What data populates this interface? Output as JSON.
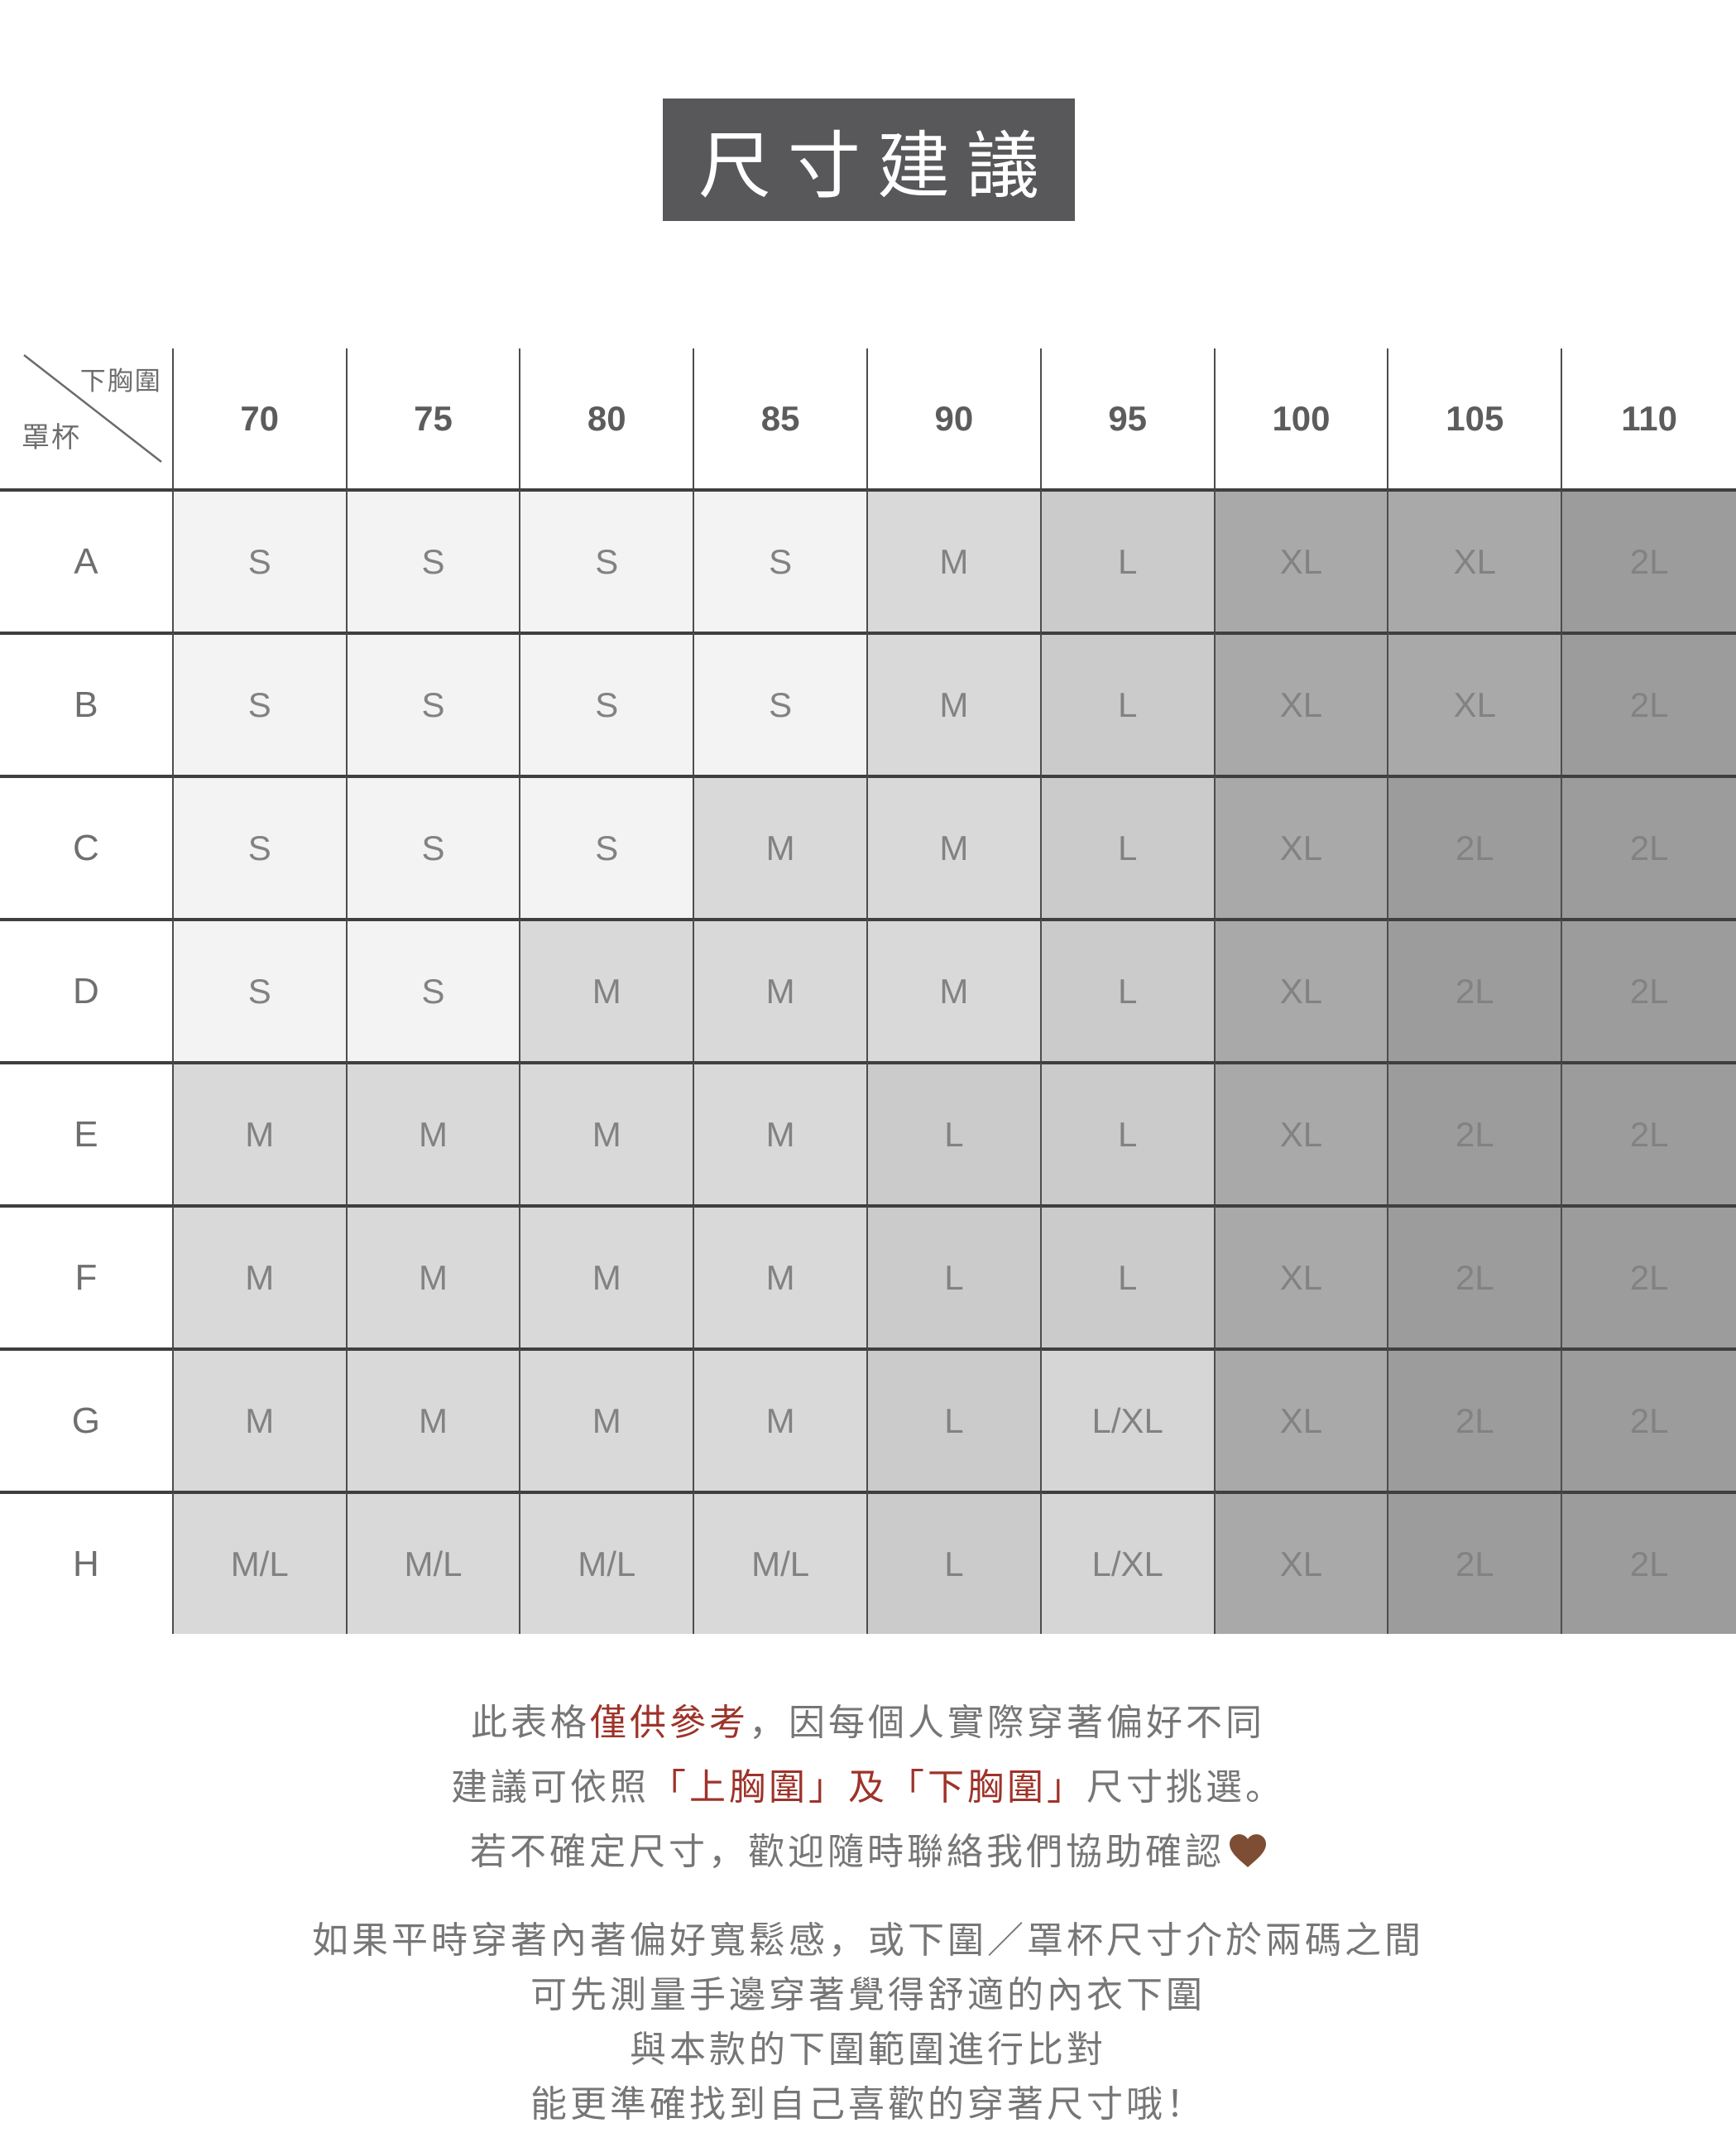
{
  "title": "尺寸建議",
  "chart_data": {
    "type": "table",
    "title": "尺寸建議",
    "corner_top_right": "下胸圍",
    "corner_bottom_left": "罩杯",
    "columns": [
      "70",
      "75",
      "80",
      "85",
      "90",
      "95",
      "100",
      "105",
      "110"
    ],
    "rows": [
      {
        "cup": "A",
        "sizes": [
          "S",
          "S",
          "S",
          "S",
          "M",
          "L",
          "XL",
          "XL",
          "2L"
        ]
      },
      {
        "cup": "B",
        "sizes": [
          "S",
          "S",
          "S",
          "S",
          "M",
          "L",
          "XL",
          "XL",
          "2L"
        ]
      },
      {
        "cup": "C",
        "sizes": [
          "S",
          "S",
          "S",
          "M",
          "M",
          "L",
          "XL",
          "2L",
          "2L"
        ]
      },
      {
        "cup": "D",
        "sizes": [
          "S",
          "S",
          "M",
          "M",
          "M",
          "L",
          "XL",
          "2L",
          "2L"
        ]
      },
      {
        "cup": "E",
        "sizes": [
          "M",
          "M",
          "M",
          "M",
          "L",
          "L",
          "XL",
          "2L",
          "2L"
        ]
      },
      {
        "cup": "F",
        "sizes": [
          "M",
          "M",
          "M",
          "M",
          "L",
          "L",
          "XL",
          "2L",
          "2L"
        ]
      },
      {
        "cup": "G",
        "sizes": [
          "M",
          "M",
          "M",
          "M",
          "L",
          "L/XL",
          "XL",
          "2L",
          "2L"
        ]
      },
      {
        "cup": "H",
        "sizes": [
          "M/L",
          "M/L",
          "M/L",
          "M/L",
          "L",
          "L/XL",
          "XL",
          "2L",
          "2L"
        ]
      }
    ]
  },
  "colors": {
    "title_bg": "#58585a",
    "title_text": "#ffffff",
    "text_gray": "#767676",
    "accent_red": "#9e332a",
    "heart_brown": "#7d4e33",
    "grid_line_vertical": "#4d4d4d",
    "grid_line_horizontal": "#3f3f3f",
    "size_fill": {
      "S": "#f3f3f3",
      "M": "#d9d9d9",
      "M/L": "#d9d9d9",
      "L": "#cbcbcb",
      "L/XL": "#d6d6d6",
      "XL": "#a9a9a9",
      "2L": "#9c9c9c"
    }
  },
  "notes": {
    "primary": {
      "lines": [
        {
          "segments": [
            {
              "text": "此表格"
            },
            {
              "text": "僅供參考",
              "style": "red"
            },
            {
              "text": "，因每個人實際穿著偏好不同"
            }
          ]
        },
        {
          "segments": [
            {
              "text": "建議可依照"
            },
            {
              "text": "「上胸圍」及「下胸圍」",
              "style": "red"
            },
            {
              "text": "尺寸挑選。"
            }
          ]
        },
        {
          "segments": [
            {
              "text": "若不確定尺寸，歡迎隨時聯絡我們協助確認"
            },
            {
              "text": "🤎",
              "style": "heart"
            }
          ]
        }
      ]
    },
    "secondary": {
      "lines": [
        {
          "segments": [
            {
              "text": "如果平時穿著內著偏好寬鬆感，或下圍／罩杯尺寸介於兩碼之間"
            }
          ]
        },
        {
          "segments": [
            {
              "text": "可先測量手邊穿著覺得舒適的內衣下圍"
            }
          ]
        },
        {
          "segments": [
            {
              "text": "與本款的下圍範圍進行比對"
            }
          ]
        },
        {
          "segments": [
            {
              "text": "能更準確找到自己喜歡的穿著尺寸哦！"
            }
          ]
        }
      ]
    }
  }
}
